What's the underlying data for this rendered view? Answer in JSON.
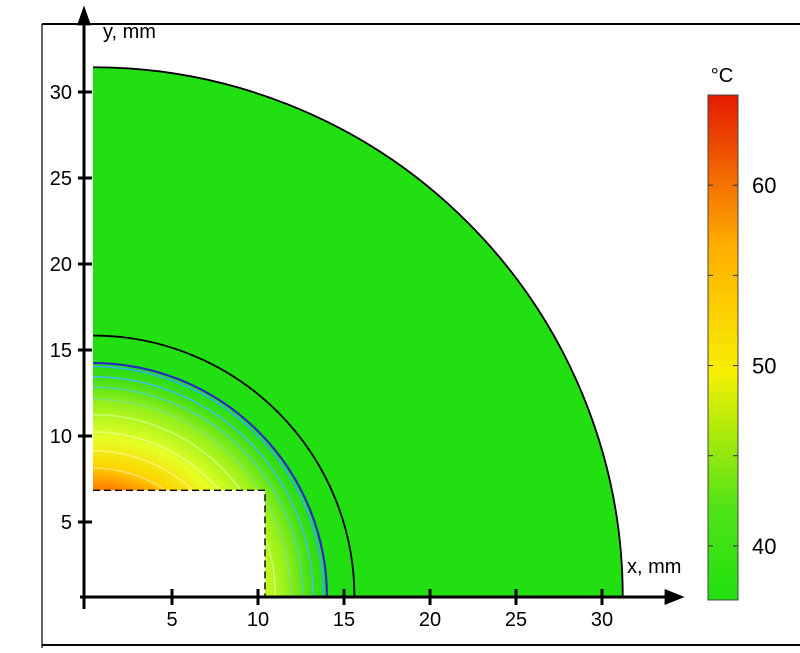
{
  "chart_data": {
    "type": "heatmap",
    "xlabel": "x, mm",
    "ylabel": "y, mm",
    "xlim": [
      0,
      33
    ],
    "ylim": [
      0,
      33
    ],
    "x_ticks": [
      5,
      10,
      15,
      20,
      25,
      30
    ],
    "y_ticks": [
      5,
      10,
      15,
      20,
      25,
      30
    ],
    "domain": {
      "outer_radius": 30.8,
      "middle_radius": 15.2,
      "inner_cutout": {
        "x_max": 10,
        "y_max": 6.2
      }
    },
    "contour_radii": [
      7.5,
      8.5,
      9.6,
      10.6,
      11.5,
      12.2,
      12.8,
      13.4
    ],
    "isotherm_radius": 13.6,
    "colorbar": {
      "unit": "°C",
      "min": 37,
      "max": 65,
      "ticks": [
        40,
        50,
        60
      ]
    },
    "field": {
      "core_temperature": 64,
      "far_temperature": 37.5
    }
  }
}
